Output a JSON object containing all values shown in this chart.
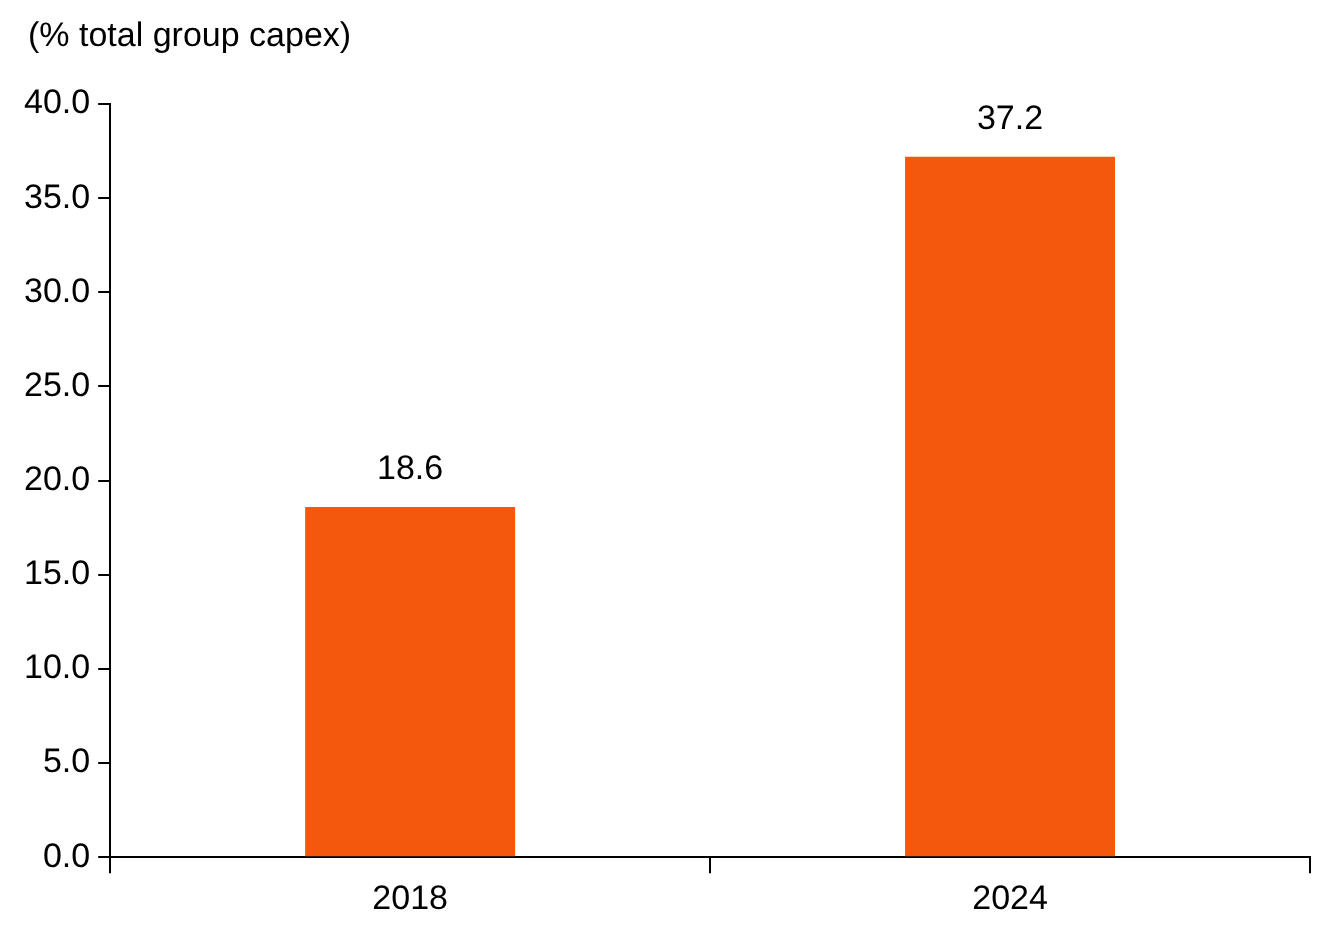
{
  "chart_data": {
    "type": "bar",
    "ylabel": "(% total group capex)",
    "categories": [
      "2018",
      "2024"
    ],
    "values": [
      18.6,
      37.2
    ],
    "color": "#f4580c",
    "ylim": [
      0,
      40
    ],
    "yticks": [
      {
        "value": 0,
        "label": "0.0"
      },
      {
        "value": 5,
        "label": "5.0"
      },
      {
        "value": 10,
        "label": "10.0"
      },
      {
        "value": 15,
        "label": "15.0"
      },
      {
        "value": 20,
        "label": "20.0"
      },
      {
        "value": 25,
        "label": "25.0"
      },
      {
        "value": 30,
        "label": "30.0"
      },
      {
        "value": 35,
        "label": "35.0"
      },
      {
        "value": 40,
        "label": "40.0"
      }
    ],
    "grid": false,
    "legend": false,
    "data_labels": true
  }
}
